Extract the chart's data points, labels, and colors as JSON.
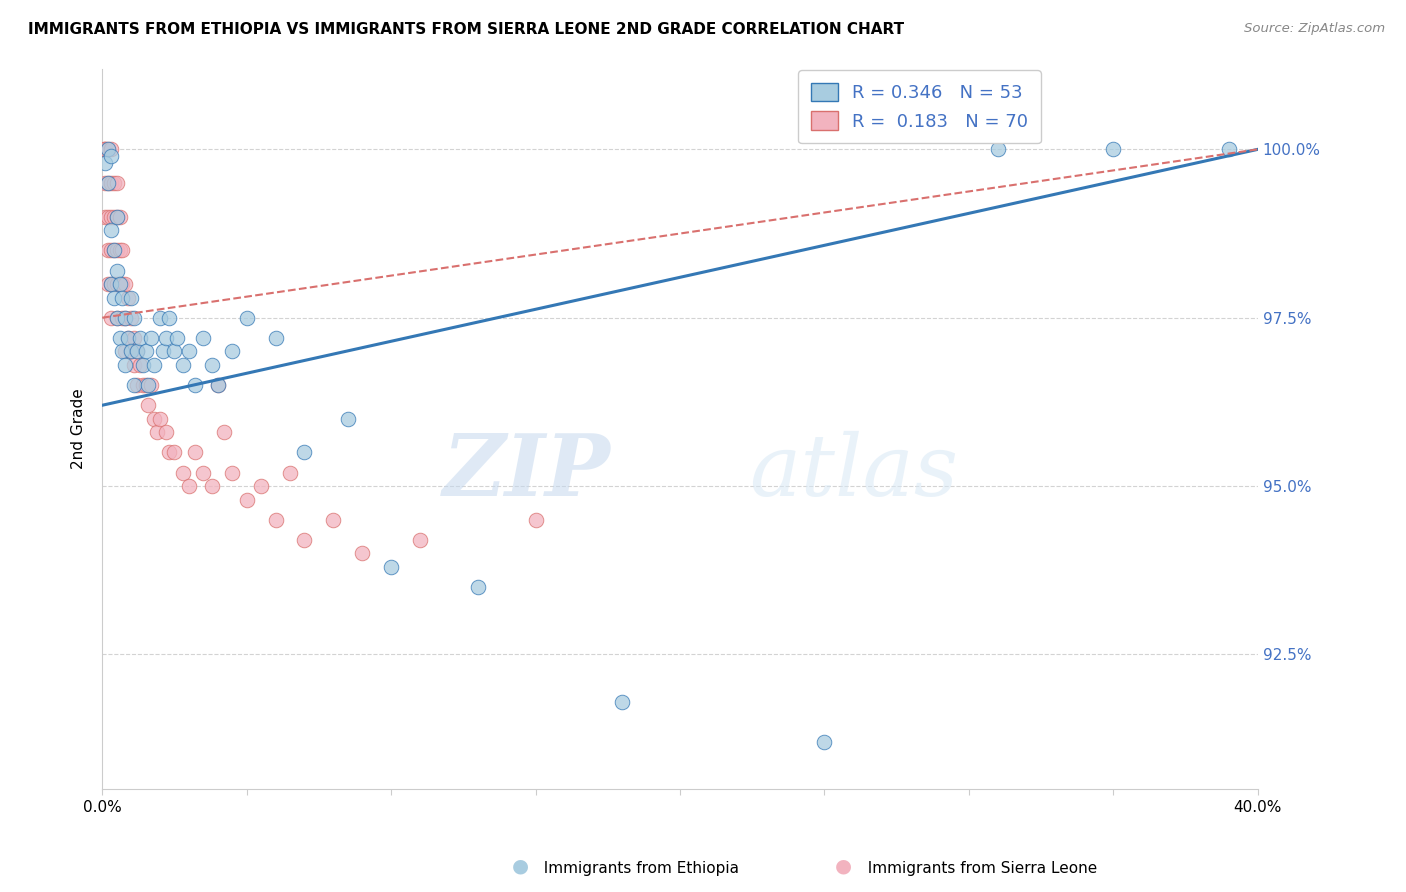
{
  "title": "IMMIGRANTS FROM ETHIOPIA VS IMMIGRANTS FROM SIERRA LEONE 2ND GRADE CORRELATION CHART",
  "source": "Source: ZipAtlas.com",
  "ylabel_label": "2nd Grade",
  "xlim": [
    0.0,
    0.4
  ],
  "ylim": [
    90.5,
    101.2
  ],
  "ethiopia_R": 0.346,
  "ethiopia_N": 53,
  "sierraleone_R": 0.183,
  "sierraleone_N": 70,
  "ethiopia_color": "#a8cce0",
  "sierraleone_color": "#f2b3bf",
  "ethiopia_line_color": "#3478b5",
  "sierraleone_line_color": "#d9706e",
  "watermark_zip": "ZIP",
  "watermark_atlas": "atlas",
  "y_ticks": [
    92.5,
    95.0,
    97.5,
    100.0
  ],
  "ethiopia_x": [
    0.001,
    0.002,
    0.002,
    0.003,
    0.003,
    0.003,
    0.004,
    0.004,
    0.005,
    0.005,
    0.005,
    0.006,
    0.006,
    0.007,
    0.007,
    0.008,
    0.008,
    0.009,
    0.01,
    0.01,
    0.011,
    0.011,
    0.012,
    0.013,
    0.014,
    0.015,
    0.016,
    0.017,
    0.018,
    0.02,
    0.021,
    0.022,
    0.023,
    0.025,
    0.026,
    0.028,
    0.03,
    0.032,
    0.035,
    0.038,
    0.04,
    0.045,
    0.05,
    0.06,
    0.07,
    0.085,
    0.1,
    0.13,
    0.18,
    0.25,
    0.31,
    0.35,
    0.39
  ],
  "ethiopia_y": [
    99.8,
    100.0,
    99.5,
    99.9,
    98.8,
    98.0,
    98.5,
    97.8,
    99.0,
    98.2,
    97.5,
    98.0,
    97.2,
    97.8,
    97.0,
    97.5,
    96.8,
    97.2,
    97.8,
    97.0,
    97.5,
    96.5,
    97.0,
    97.2,
    96.8,
    97.0,
    96.5,
    97.2,
    96.8,
    97.5,
    97.0,
    97.2,
    97.5,
    97.0,
    97.2,
    96.8,
    97.0,
    96.5,
    97.2,
    96.8,
    96.5,
    97.0,
    97.5,
    97.2,
    95.5,
    96.0,
    93.8,
    93.5,
    91.8,
    91.2,
    100.0,
    100.0,
    100.0
  ],
  "sierraleone_x": [
    0.0005,
    0.001,
    0.001,
    0.001,
    0.001,
    0.002,
    0.002,
    0.002,
    0.002,
    0.002,
    0.003,
    0.003,
    0.003,
    0.003,
    0.003,
    0.003,
    0.004,
    0.004,
    0.004,
    0.004,
    0.005,
    0.005,
    0.005,
    0.005,
    0.005,
    0.006,
    0.006,
    0.006,
    0.007,
    0.007,
    0.007,
    0.008,
    0.008,
    0.008,
    0.009,
    0.009,
    0.01,
    0.01,
    0.011,
    0.011,
    0.012,
    0.012,
    0.013,
    0.014,
    0.015,
    0.016,
    0.017,
    0.018,
    0.019,
    0.02,
    0.022,
    0.023,
    0.025,
    0.028,
    0.03,
    0.032,
    0.035,
    0.038,
    0.04,
    0.042,
    0.045,
    0.05,
    0.055,
    0.06,
    0.065,
    0.07,
    0.08,
    0.09,
    0.11,
    0.15
  ],
  "sierraleone_y": [
    100.0,
    100.0,
    100.0,
    99.5,
    99.0,
    100.0,
    99.5,
    99.0,
    98.5,
    98.0,
    100.0,
    99.5,
    99.0,
    98.5,
    98.0,
    97.5,
    99.5,
    99.0,
    98.5,
    98.0,
    99.5,
    99.0,
    98.5,
    98.0,
    97.5,
    99.0,
    98.5,
    98.0,
    98.5,
    98.0,
    97.5,
    98.0,
    97.5,
    97.0,
    97.8,
    97.2,
    97.5,
    97.0,
    97.2,
    96.8,
    97.0,
    96.5,
    96.8,
    96.5,
    96.5,
    96.2,
    96.5,
    96.0,
    95.8,
    96.0,
    95.8,
    95.5,
    95.5,
    95.2,
    95.0,
    95.5,
    95.2,
    95.0,
    96.5,
    95.8,
    95.2,
    94.8,
    95.0,
    94.5,
    95.2,
    94.2,
    94.5,
    94.0,
    94.2,
    94.5
  ]
}
